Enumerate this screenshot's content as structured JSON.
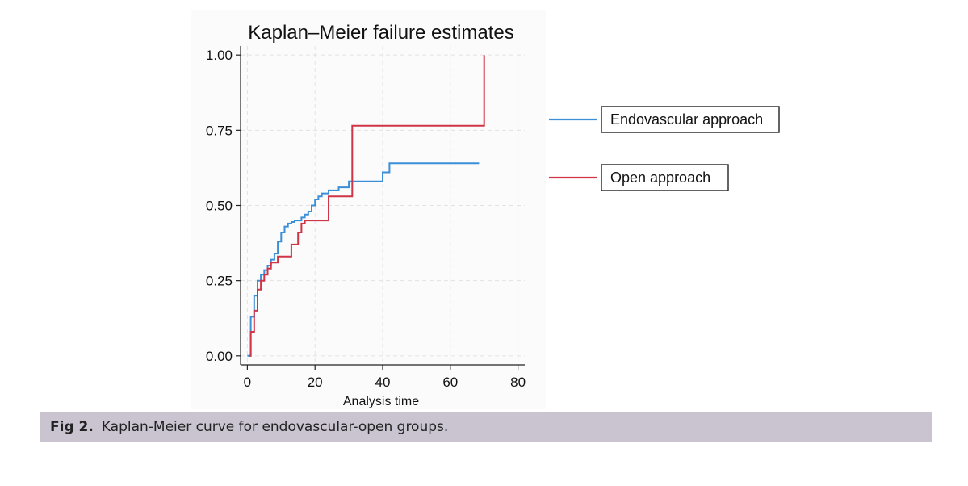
{
  "chart_data": {
    "type": "line",
    "step": true,
    "title": "Kaplan–Meier failure estimates",
    "xlabel": "Analysis time",
    "ylabel": "",
    "xlim": [
      -2,
      82
    ],
    "ylim": [
      -0.03,
      1.03
    ],
    "xticks": [
      0,
      20,
      40,
      60,
      80
    ],
    "xtick_labels": [
      "0",
      "20",
      "40",
      "60",
      "80"
    ],
    "yticks": [
      0,
      0.25,
      0.5,
      0.75,
      1
    ],
    "ytick_labels": [
      "0.00",
      "0.25",
      "0.50",
      "0.75",
      "1.00"
    ],
    "grid": true,
    "legend_position": "right",
    "series": [
      {
        "name": "Endovascular approach",
        "color": "#3a8fd6",
        "x": [
          0,
          1,
          2,
          3,
          4,
          5,
          6,
          7,
          8,
          9,
          10,
          11,
          12,
          13,
          14,
          16,
          17,
          18,
          19,
          20,
          21,
          22,
          24,
          27,
          30,
          35,
          40,
          42,
          68.5
        ],
        "y": [
          0,
          0.13,
          0.2,
          0.25,
          0.27,
          0.285,
          0.3,
          0.32,
          0.34,
          0.38,
          0.41,
          0.43,
          0.44,
          0.445,
          0.45,
          0.46,
          0.47,
          0.48,
          0.5,
          0.52,
          0.53,
          0.54,
          0.55,
          0.56,
          0.58,
          0.58,
          0.61,
          0.64,
          0.64
        ]
      },
      {
        "name": "Open approach",
        "color": "#cf3547",
        "x": [
          0.5,
          1,
          2,
          3,
          4,
          5,
          6,
          7,
          9,
          13,
          15,
          16,
          17,
          24,
          31,
          70,
          70
        ],
        "y": [
          0,
          0.08,
          0.15,
          0.22,
          0.25,
          0.27,
          0.29,
          0.31,
          0.33,
          0.37,
          0.41,
          0.44,
          0.45,
          0.53,
          0.765,
          0.765,
          1.0
        ]
      }
    ]
  },
  "caption": {
    "label": "Fig 2.",
    "text": "Kaplan-Meier curve for endovascular-open groups."
  }
}
